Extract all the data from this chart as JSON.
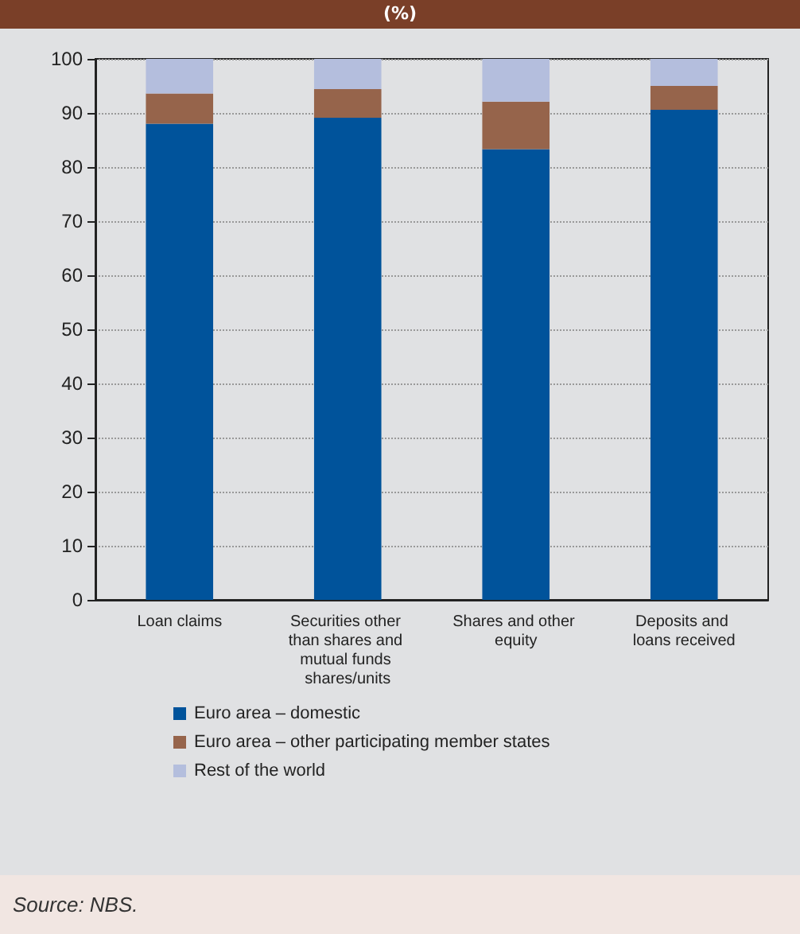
{
  "chart_data": {
    "type": "bar",
    "title": "(%)",
    "stacked": true,
    "categories": [
      "Loan claims",
      "Securities other than shares and mutual funds shares/units",
      "Shares and other equity",
      "Deposits and loans received"
    ],
    "series": [
      {
        "name": "Euro area – domestic",
        "color": "#00539b",
        "values": [
          88,
          89.1,
          83.3,
          90.6
        ]
      },
      {
        "name": "Euro area – other participating member states",
        "color": "#96644b",
        "values": [
          5.6,
          5.3,
          8.8,
          4.4
        ]
      },
      {
        "name": "Rest of the world",
        "color": "#b4bedd",
        "values": [
          6.4,
          5.6,
          7.9,
          5
        ]
      }
    ],
    "ylim": [
      0,
      100
    ],
    "yticks": [
      0,
      10,
      20,
      30,
      40,
      50,
      60,
      70,
      80,
      90,
      100
    ],
    "grid": "y",
    "legend": "bottom",
    "annotations": [
      "Source: NBS."
    ]
  }
}
